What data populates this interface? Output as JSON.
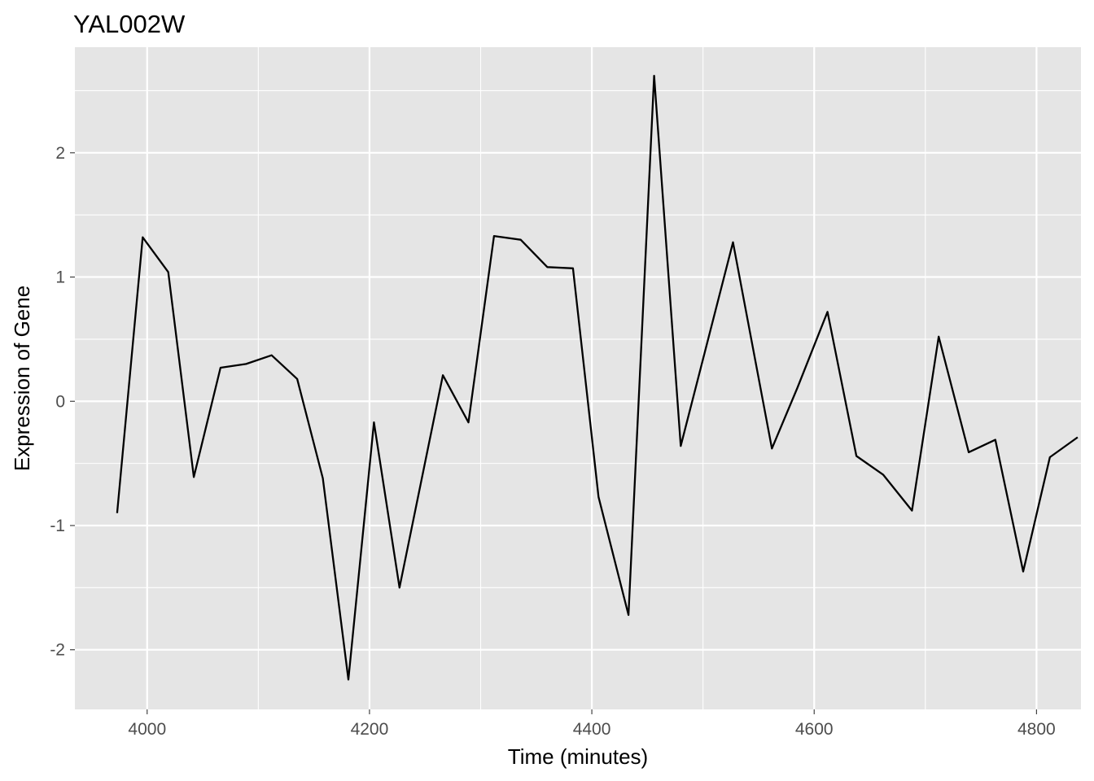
{
  "chart_data": {
    "type": "line",
    "title": "YAL002W",
    "xlabel": "Time (minutes)",
    "ylabel": "Expression of Gene",
    "xlim": [
      3935,
      4840
    ],
    "ylim": [
      -2.48,
      2.85
    ],
    "x_ticks": [
      4000,
      4200,
      4400,
      4600,
      4800
    ],
    "y_ticks": [
      -2,
      -1,
      0,
      1,
      2
    ],
    "x_tick_labels": [
      "4000",
      "4200",
      "4400",
      "4600",
      "4800"
    ],
    "y_tick_labels": [
      "-2",
      "-1",
      "0",
      "1",
      "2"
    ],
    "grid": true,
    "colors": {
      "panel": "#e5e5e5",
      "grid": "#ffffff",
      "line": "#000000"
    },
    "series": [
      {
        "x": [
          3973,
          3996,
          4019,
          4042,
          4066,
          4089,
          4112,
          4135,
          4158,
          4181,
          4204,
          4227,
          4266,
          4289,
          4312,
          4336,
          4360,
          4383,
          4406,
          4433,
          4456,
          4480,
          4527,
          4562,
          4585,
          4612,
          4638,
          4662,
          4688,
          4712,
          4739,
          4763,
          4788,
          4812,
          4837
        ],
        "values": [
          -0.9,
          1.32,
          1.04,
          -0.61,
          0.27,
          0.3,
          0.37,
          0.18,
          -0.62,
          -2.24,
          -0.17,
          -1.5,
          0.21,
          -0.17,
          1.33,
          1.3,
          1.08,
          1.07,
          -0.77,
          -1.72,
          2.62,
          -0.36,
          1.28,
          -0.38,
          0.11,
          0.72,
          -0.44,
          -0.59,
          -0.88,
          0.52,
          -0.41,
          -0.31,
          -1.37,
          -0.45,
          -0.29
        ]
      }
    ]
  }
}
